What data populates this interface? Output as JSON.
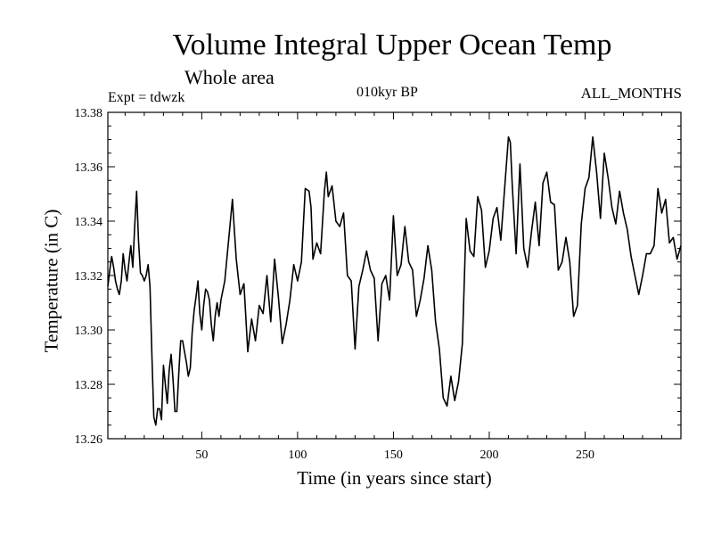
{
  "chart_data": {
    "type": "line",
    "title": "Volume Integral Upper Ocean Temp",
    "subtitle": "Whole area",
    "expt": "Expt = tdwzk",
    "period": "010kyr BP",
    "months": "ALL_MONTHS",
    "xlabel": "Time (in years since start)",
    "ylabel": "Temperature (in C)",
    "xlim": [
      1,
      300
    ],
    "ylim": [
      13.26,
      13.38
    ],
    "xticks": [
      50,
      100,
      150,
      200,
      250
    ],
    "xtick_labels": [
      "50",
      "100",
      "150",
      "200",
      "250"
    ],
    "yticks": [
      13.26,
      13.28,
      13.3,
      13.32,
      13.34,
      13.36,
      13.38
    ],
    "ytick_labels": [
      "13.26",
      "13.28",
      "13.30",
      "13.32",
      "13.34",
      "13.36",
      "13.38"
    ],
    "grid": false,
    "series": [
      {
        "color": "#000000",
        "x": [
          1,
          2,
          3,
          4,
          5,
          6,
          7,
          8,
          9,
          10,
          11,
          12,
          13,
          14,
          15,
          16,
          17,
          18,
          19,
          20,
          21,
          22,
          23,
          24,
          25,
          26,
          27,
          28,
          29,
          30,
          31,
          32,
          33,
          34,
          35,
          36,
          37,
          38,
          39,
          40,
          41,
          42,
          43,
          44,
          45,
          46,
          47,
          48,
          49,
          50,
          51,
          52,
          53,
          54,
          55,
          56,
          57,
          58,
          59,
          60,
          62,
          64,
          66,
          67,
          68,
          70,
          72,
          74,
          76,
          78,
          80,
          82,
          84,
          86,
          88,
          90,
          92,
          94,
          96,
          98,
          100,
          102,
          104,
          106,
          107,
          108,
          110,
          112,
          114,
          115,
          116,
          118,
          120,
          122,
          124,
          126,
          128,
          130,
          132,
          134,
          136,
          138,
          140,
          142,
          144,
          146,
          148,
          150,
          152,
          154,
          156,
          158,
          160,
          162,
          164,
          166,
          168,
          170,
          172,
          174,
          176,
          178,
          180,
          182,
          184,
          186,
          188,
          190,
          192,
          194,
          196,
          198,
          200,
          202,
          204,
          206,
          208,
          210,
          211,
          212,
          214,
          216,
          218,
          220,
          222,
          224,
          226,
          228,
          230,
          232,
          234,
          236,
          238,
          240,
          242,
          244,
          246,
          248,
          250,
          252,
          254,
          256,
          258,
          260,
          262,
          264,
          266,
          268,
          270,
          272,
          274,
          276,
          278,
          280,
          282,
          284,
          286,
          288,
          290,
          292,
          294,
          296,
          298,
          300
        ],
        "y": [
          13.316,
          13.322,
          13.327,
          13.323,
          13.318,
          13.315,
          13.313,
          13.318,
          13.328,
          13.322,
          13.318,
          13.325,
          13.331,
          13.323,
          13.338,
          13.351,
          13.333,
          13.321,
          13.32,
          13.318,
          13.32,
          13.324,
          13.316,
          13.29,
          13.268,
          13.265,
          13.271,
          13.271,
          13.267,
          13.287,
          13.28,
          13.273,
          13.285,
          13.291,
          13.282,
          13.27,
          13.27,
          13.284,
          13.296,
          13.296,
          13.292,
          13.288,
          13.283,
          13.286,
          13.299,
          13.307,
          13.312,
          13.318,
          13.306,
          13.3,
          13.309,
          13.315,
          13.314,
          13.311,
          13.302,
          13.296,
          13.305,
          13.31,
          13.305,
          13.311,
          13.318,
          13.333,
          13.348,
          13.337,
          13.326,
          13.313,
          13.317,
          13.292,
          13.304,
          13.296,
          13.309,
          13.306,
          13.32,
          13.303,
          13.326,
          13.312,
          13.295,
          13.302,
          13.311,
          13.324,
          13.318,
          13.325,
          13.352,
          13.351,
          13.345,
          13.326,
          13.332,
          13.328,
          13.351,
          13.358,
          13.349,
          13.353,
          13.34,
          13.338,
          13.343,
          13.32,
          13.318,
          13.293,
          13.316,
          13.322,
          13.329,
          13.322,
          13.319,
          13.296,
          13.317,
          13.32,
          13.311,
          13.342,
          13.32,
          13.324,
          13.338,
          13.325,
          13.322,
          13.305,
          13.311,
          13.319,
          13.331,
          13.322,
          13.303,
          13.293,
          13.275,
          13.272,
          13.283,
          13.274,
          13.281,
          13.295,
          13.341,
          13.329,
          13.327,
          13.349,
          13.344,
          13.323,
          13.329,
          13.341,
          13.345,
          13.333,
          13.352,
          13.371,
          13.369,
          13.353,
          13.328,
          13.361,
          13.33,
          13.323,
          13.336,
          13.347,
          13.331,
          13.354,
          13.358,
          13.347,
          13.346,
          13.322,
          13.325,
          13.334,
          13.325,
          13.305,
          13.309,
          13.339,
          13.352,
          13.356,
          13.371,
          13.358,
          13.341,
          13.365,
          13.356,
          13.345,
          13.339,
          13.351,
          13.343,
          13.337,
          13.327,
          13.32,
          13.313,
          13.32,
          13.328,
          13.328,
          13.331,
          13.352,
          13.343,
          13.348,
          13.332,
          13.334,
          13.326,
          13.331
        ]
      }
    ]
  }
}
